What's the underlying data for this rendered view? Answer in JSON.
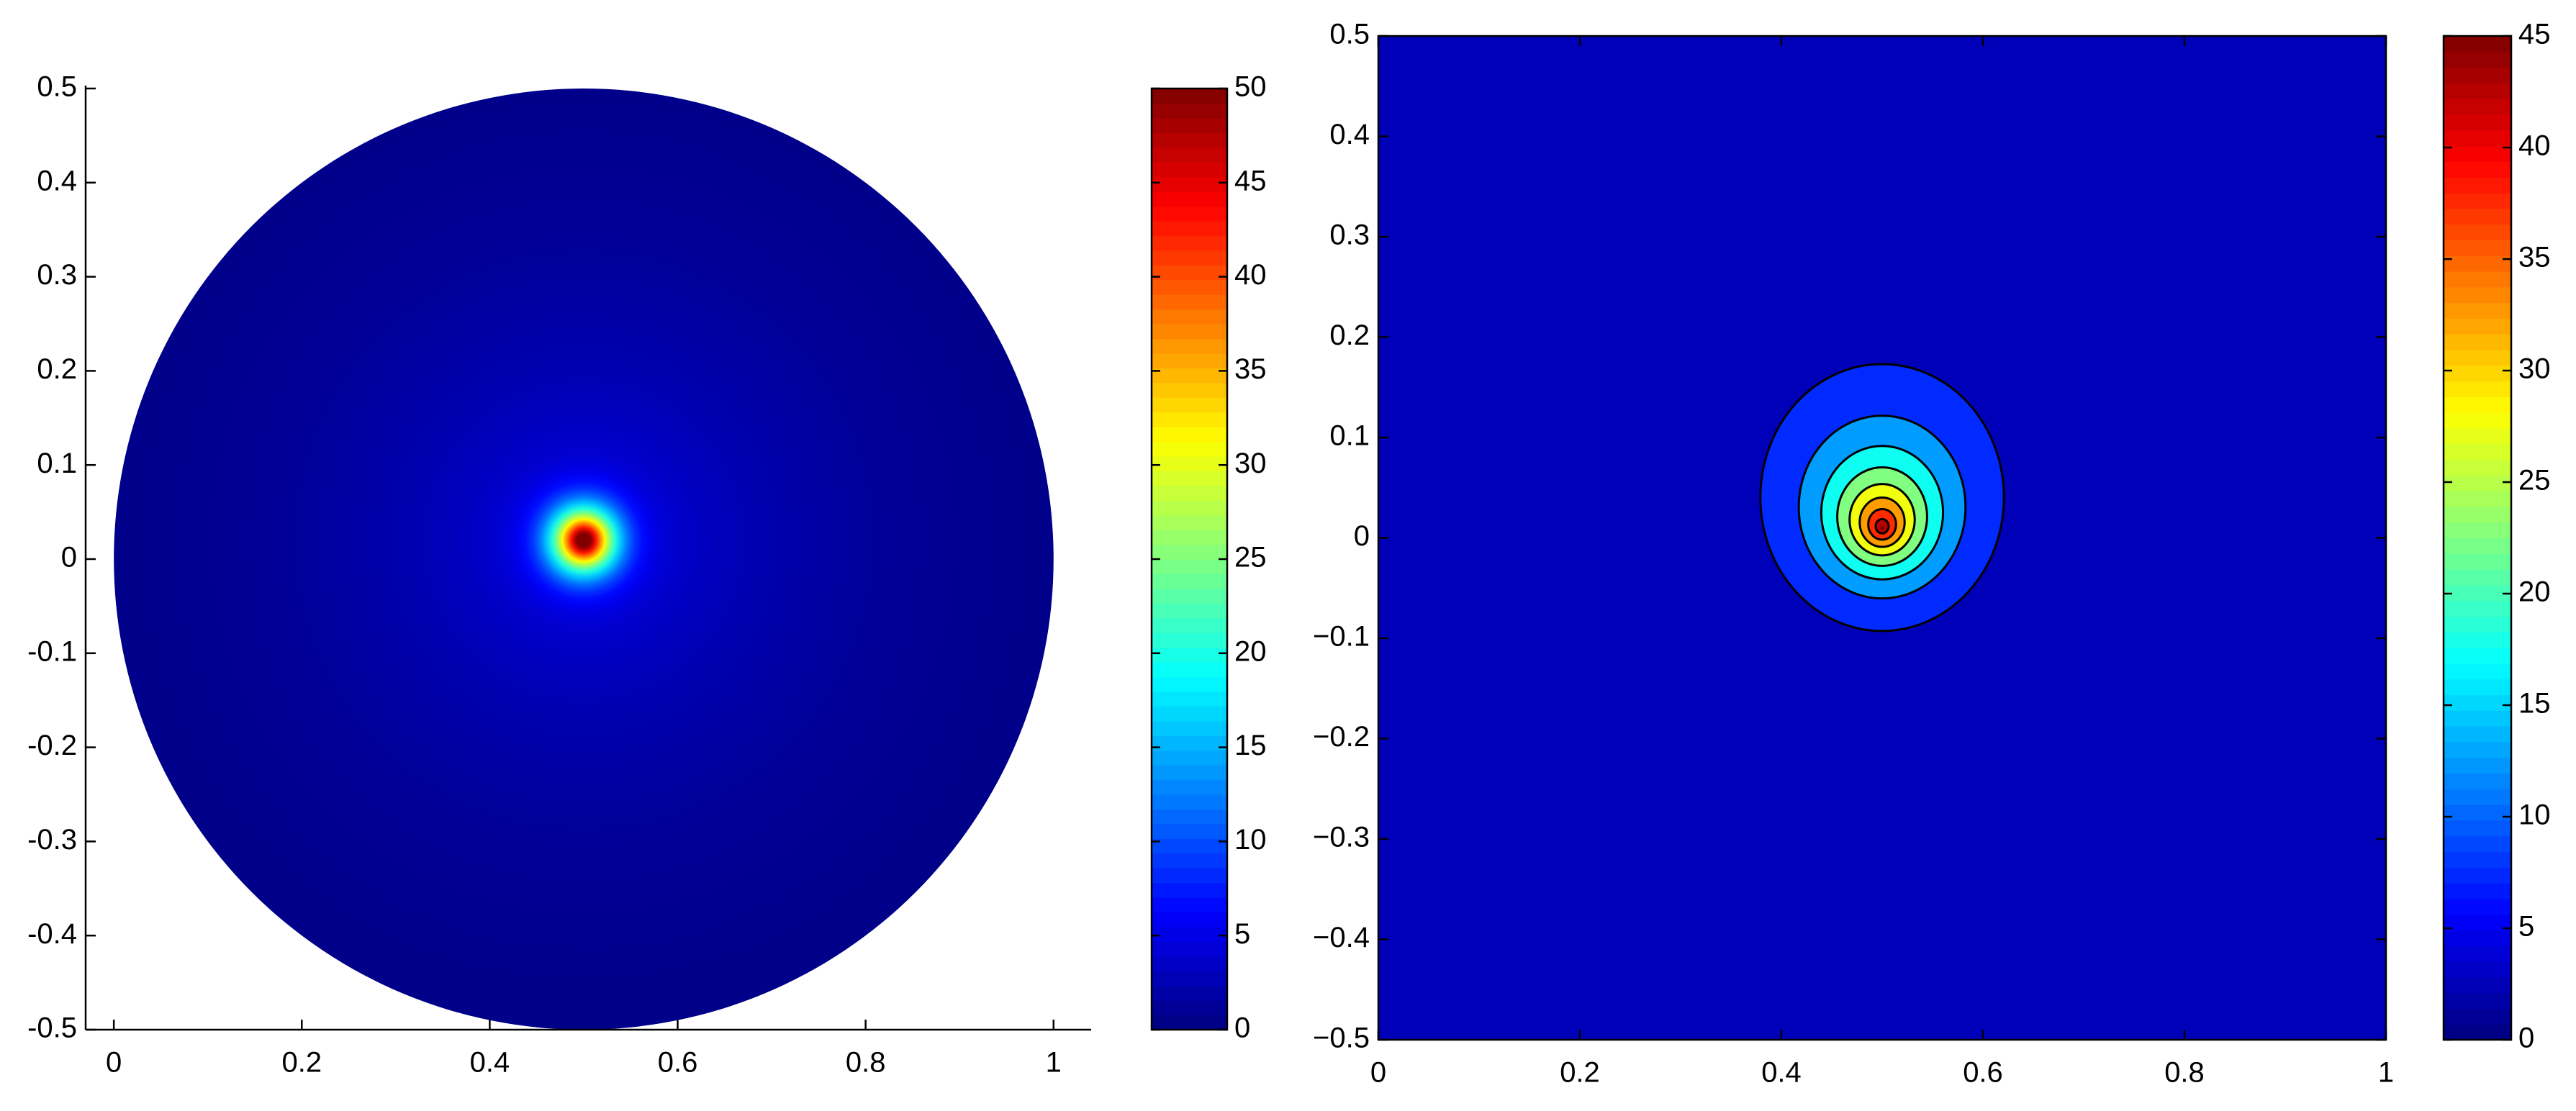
{
  "chart_data": [
    {
      "type": "heatmap",
      "colormap": "jet",
      "center": [
        0.5,
        0
      ],
      "radius": 0.5,
      "peak": {
        "x": 0.5,
        "y": 0.02,
        "value": 50
      },
      "xlim": [
        -0.03,
        1.04
      ],
      "ylim": [
        -0.5,
        0.5
      ],
      "xticks": [
        0,
        0.2,
        0.4,
        0.6,
        0.8,
        1
      ],
      "yticks": [
        -0.5,
        -0.4,
        -0.3,
        -0.2,
        -0.1,
        0,
        0.1,
        0.2,
        0.3,
        0.4,
        0.5
      ],
      "clim": [
        0,
        50
      ],
      "cticks": [
        0,
        5,
        10,
        15,
        20,
        25,
        30,
        35,
        40,
        45,
        50
      ]
    },
    {
      "type": "contour",
      "colormap": "jet",
      "peak": {
        "x": 0.5,
        "y": 0.01,
        "value": 45
      },
      "levels": [
        5,
        10,
        15,
        20,
        25,
        30,
        35,
        40
      ],
      "xlim": [
        0,
        1
      ],
      "ylim": [
        -0.5,
        0.5
      ],
      "xticks": [
        0,
        0.2,
        0.4,
        0.6,
        0.8,
        1
      ],
      "yticks": [
        {
          "value": -0.5,
          "label": "−0.5"
        },
        {
          "value": -0.4,
          "label": "−0.4"
        },
        {
          "value": -0.3,
          "label": "−0.3"
        },
        {
          "value": -0.2,
          "label": "−0.2"
        },
        {
          "value": -0.1,
          "label": "−0.1"
        },
        0,
        0.1,
        0.2,
        0.3,
        0.4,
        0.5
      ],
      "clim": [
        0,
        45
      ],
      "cticks": [
        0,
        5,
        10,
        15,
        20,
        25,
        30,
        35,
        40,
        45
      ]
    }
  ]
}
